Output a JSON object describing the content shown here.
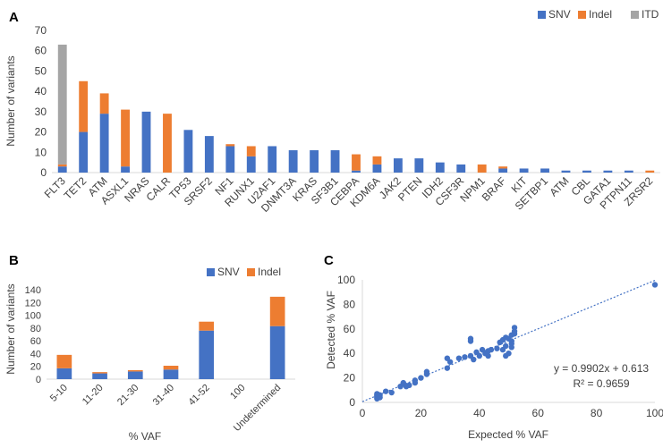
{
  "colors": {
    "SNV": "#4472C4",
    "Indel": "#ED7D31",
    "ITD": "#A5A5A5",
    "axis": "#D9D9D9",
    "text": "#404040",
    "trend": "#4472C4"
  },
  "panels": {
    "A": "A",
    "B": "B",
    "C": "C"
  },
  "chart_data": [
    {
      "id": "A",
      "type": "bar",
      "stacked": true,
      "ylabel": "Number of variants",
      "ylim": [
        0,
        70
      ],
      "yticks": [
        0,
        10,
        20,
        30,
        40,
        50,
        60,
        70
      ],
      "legend": "top-right",
      "categories": [
        "FLT3",
        "TET2",
        "ATM",
        "ASXL1",
        "NRAS",
        "CALR",
        "TP53",
        "SRSF2",
        "NF1",
        "RUNX1",
        "U2AF1",
        "DNMT3A",
        "KRAS",
        "SF3B1",
        "CEBPA",
        "KDM6A",
        "JAK2",
        "PTEN",
        "IDH2",
        "CSF3R",
        "NPM1",
        "BRAF",
        "KIT",
        "SETBP1",
        "ATM",
        "CBL",
        "GATA1",
        "PTPN11",
        "ZRSR2"
      ],
      "series": [
        {
          "name": "SNV",
          "color_key": "SNV",
          "values": [
            3,
            20,
            29,
            3,
            30,
            0,
            21,
            18,
            13,
            8,
            13,
            11,
            11,
            11,
            1,
            4,
            7,
            7,
            5,
            4,
            0,
            2,
            2,
            2,
            1,
            1,
            1,
            1,
            0
          ]
        },
        {
          "name": "Indel",
          "color_key": "Indel",
          "values": [
            1,
            25,
            10,
            28,
            0,
            29,
            0,
            0,
            1,
            5,
            0,
            0,
            0,
            0,
            8,
            4,
            0,
            0,
            0,
            0,
            4,
            1,
            0,
            0,
            0,
            0,
            0,
            0,
            1
          ]
        },
        {
          "name": "ITD",
          "color_key": "ITD",
          "values": [
            59,
            0,
            0,
            0,
            0,
            0,
            0,
            0,
            0,
            0,
            0,
            0,
            0,
            0,
            0,
            0,
            0,
            0,
            0,
            0,
            0,
            0,
            0,
            0,
            0,
            0,
            0,
            0,
            0
          ]
        }
      ]
    },
    {
      "id": "B",
      "type": "bar",
      "stacked": true,
      "xlabel": "% VAF",
      "ylabel": "Number of variants",
      "ylim": [
        0,
        140
      ],
      "yticks": [
        0,
        20,
        40,
        60,
        80,
        100,
        120,
        140
      ],
      "legend": "top-right",
      "categories": [
        "5-10",
        "11-20",
        "21-30",
        "31-40",
        "41-52",
        "100",
        "Undetermined"
      ],
      "series": [
        {
          "name": "SNV",
          "color_key": "SNV",
          "values": [
            17,
            9,
            12,
            15,
            76,
            0,
            83
          ]
        },
        {
          "name": "Indel",
          "color_key": "Indel",
          "values": [
            21,
            2,
            2,
            6,
            14,
            0,
            46
          ]
        }
      ]
    },
    {
      "id": "C",
      "type": "scatter",
      "xlabel": "Expected % VAF",
      "ylabel": "Detected % VAF",
      "xlim": [
        0,
        100
      ],
      "ylim": [
        0,
        100
      ],
      "xticks": [
        0,
        20,
        40,
        60,
        80,
        100
      ],
      "yticks": [
        0,
        20,
        40,
        60,
        80,
        100
      ],
      "trendline": {
        "slope": 0.9902,
        "intercept": 0.613
      },
      "annotations": [
        "y = 0.9902x + 0.613",
        "R² = 0.9659"
      ],
      "points": [
        [
          5,
          3
        ],
        [
          5,
          4
        ],
        [
          5,
          5
        ],
        [
          5,
          6
        ],
        [
          5,
          7
        ],
        [
          6,
          4
        ],
        [
          6,
          6
        ],
        [
          8,
          9
        ],
        [
          10,
          8
        ],
        [
          13,
          13
        ],
        [
          14,
          16
        ],
        [
          14,
          15
        ],
        [
          15,
          13
        ],
        [
          16,
          14
        ],
        [
          18,
          16
        ],
        [
          18,
          18
        ],
        [
          20,
          20
        ],
        [
          22,
          23
        ],
        [
          22,
          25
        ],
        [
          29,
          28
        ],
        [
          29,
          36
        ],
        [
          30,
          33
        ],
        [
          33,
          36
        ],
        [
          35,
          37
        ],
        [
          37,
          38
        ],
        [
          37,
          50
        ],
        [
          37,
          52
        ],
        [
          38,
          35
        ],
        [
          39,
          41
        ],
        [
          40,
          38
        ],
        [
          41,
          43
        ],
        [
          42,
          40
        ],
        [
          43,
          38
        ],
        [
          43,
          42
        ],
        [
          44,
          43
        ],
        [
          46,
          44
        ],
        [
          47,
          49
        ],
        [
          48,
          43
        ],
        [
          48,
          51
        ],
        [
          49,
          53
        ],
        [
          49,
          46
        ],
        [
          49,
          38
        ],
        [
          50,
          40
        ],
        [
          50,
          52
        ],
        [
          51,
          55
        ],
        [
          51,
          50
        ],
        [
          51,
          45
        ],
        [
          51,
          48
        ],
        [
          52,
          56
        ],
        [
          52,
          61
        ],
        [
          52,
          58
        ],
        [
          100,
          96
        ]
      ]
    }
  ]
}
